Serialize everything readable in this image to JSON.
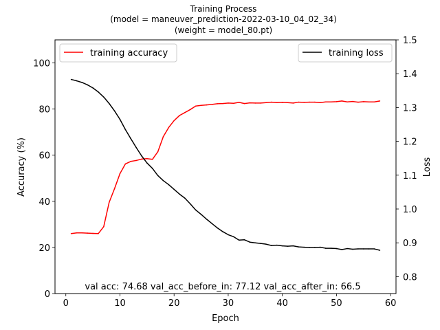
{
  "chart_data": {
    "type": "line",
    "title": [
      "Training Process",
      "(model = maneuver_prediction-2022-03-10_04_02_34)",
      "(weight = model_80.pt)"
    ],
    "xlabel": "Epoch",
    "ylabel_left": "Accuracy (%)",
    "ylabel_right": "Loss",
    "xlim": [
      -2,
      61
    ],
    "ylim_left": [
      0,
      110
    ],
    "ylim_right": [
      0.75,
      1.5
    ],
    "xticks": [
      0,
      10,
      20,
      30,
      40,
      50,
      60
    ],
    "yticks_left": [
      0,
      20,
      40,
      60,
      80,
      100
    ],
    "yticks_right": [
      "0.8",
      "0.9",
      "1.0",
      "1.1",
      "1.2",
      "1.3",
      "1.4",
      "1.5"
    ],
    "grid": false,
    "annotation": "val acc: 74.68  val_acc_before_in: 77.12  val_acc_after_in:  66.5",
    "series": [
      {
        "name": "training accuracy",
        "axis": "left",
        "color": "#ff0000",
        "legend_position": "upper-left",
        "x": [
          1,
          2,
          3,
          4,
          5,
          6,
          7,
          8,
          9,
          10,
          11,
          12,
          13,
          14,
          15,
          16,
          17,
          18,
          19,
          20,
          21,
          22,
          23,
          24,
          25,
          26,
          27,
          28,
          29,
          30,
          31,
          32,
          33,
          34,
          35,
          36,
          37,
          38,
          39,
          40,
          41,
          42,
          43,
          44,
          45,
          46,
          47,
          48,
          49,
          50,
          51,
          52,
          53,
          54,
          55,
          56,
          57,
          58
        ],
        "values": [
          26.0,
          26.3,
          26.3,
          26.2,
          26.1,
          26.0,
          29.0,
          39.5,
          45.5,
          52.0,
          56.2,
          57.3,
          57.7,
          58.3,
          58.5,
          58.2,
          61.5,
          68.0,
          72.0,
          75.0,
          77.2,
          78.5,
          79.8,
          81.3,
          81.6,
          81.8,
          82.0,
          82.3,
          82.4,
          82.6,
          82.5,
          82.9,
          82.4,
          82.7,
          82.6,
          82.6,
          82.8,
          83.0,
          82.8,
          82.9,
          82.8,
          82.6,
          83.0,
          82.9,
          83.0,
          83.0,
          82.8,
          83.1,
          83.1,
          83.2,
          83.5,
          83.1,
          83.3,
          83.0,
          83.2,
          83.1,
          83.1,
          83.5
        ]
      },
      {
        "name": "training loss",
        "axis": "right",
        "color": "#000000",
        "legend_position": "upper-right",
        "x": [
          1,
          2,
          3,
          4,
          5,
          6,
          7,
          8,
          9,
          10,
          11,
          12,
          13,
          14,
          15,
          16,
          17,
          18,
          19,
          20,
          21,
          22,
          23,
          24,
          25,
          26,
          27,
          28,
          29,
          30,
          31,
          32,
          33,
          34,
          35,
          36,
          37,
          38,
          39,
          40,
          41,
          42,
          43,
          44,
          45,
          46,
          47,
          48,
          49,
          50,
          51,
          52,
          53,
          54,
          55,
          56,
          57,
          58
        ],
        "values": [
          1.383,
          1.379,
          1.374,
          1.367,
          1.358,
          1.346,
          1.331,
          1.312,
          1.29,
          1.265,
          1.235,
          1.208,
          1.182,
          1.157,
          1.136,
          1.12,
          1.099,
          1.084,
          1.072,
          1.058,
          1.044,
          1.032,
          1.015,
          0.997,
          0.984,
          0.97,
          0.957,
          0.944,
          0.933,
          0.924,
          0.918,
          0.908,
          0.909,
          0.902,
          0.9,
          0.898,
          0.896,
          0.892,
          0.893,
          0.891,
          0.89,
          0.891,
          0.888,
          0.887,
          0.886,
          0.886,
          0.887,
          0.884,
          0.884,
          0.883,
          0.88,
          0.883,
          0.881,
          0.882,
          0.882,
          0.882,
          0.882,
          0.878
        ]
      }
    ]
  }
}
